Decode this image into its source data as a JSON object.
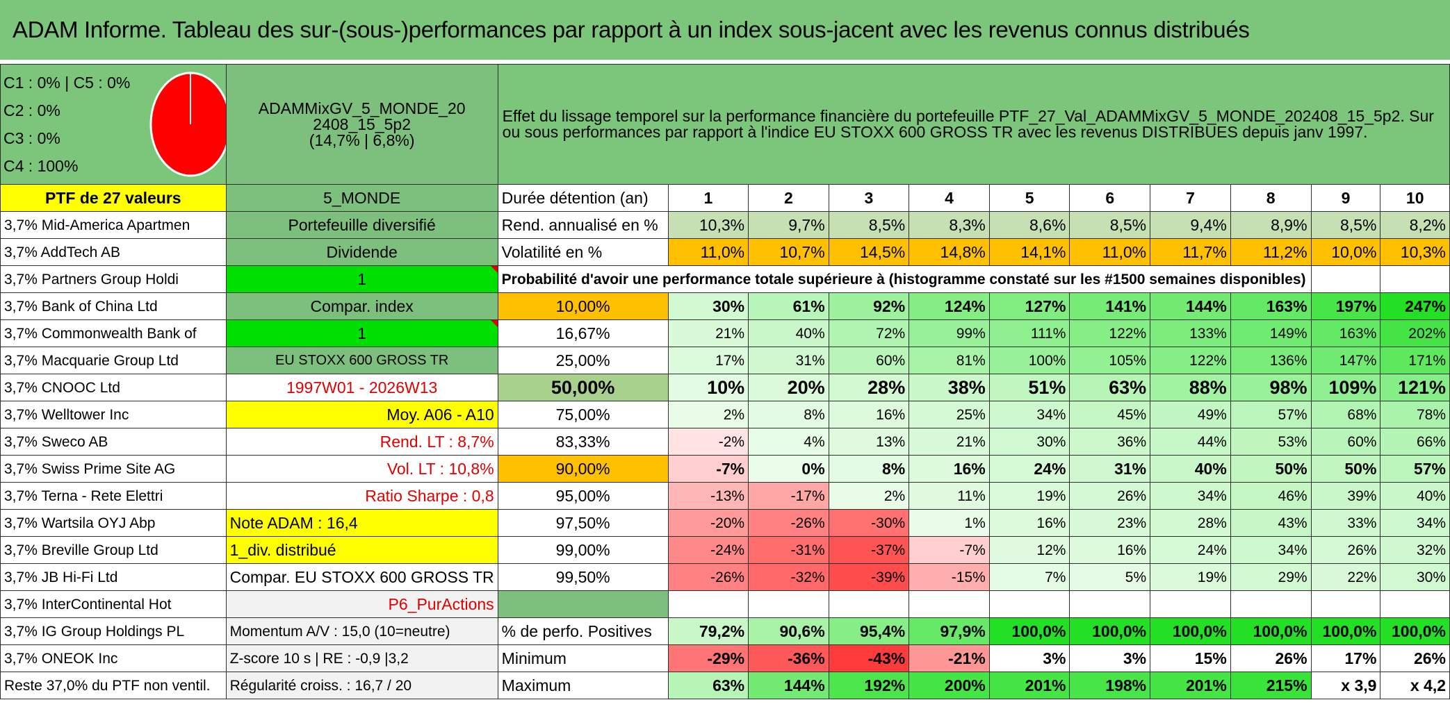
{
  "title": "ADAM Informe. Tableau des sur-(sous-)performances par rapport à un index sous-jacent avec les revenus connus distribués",
  "classes": [
    "C1 : 0% | C5 : 0%",
    "C2 : 0%",
    "C3 : 0%",
    "C4 : 100%"
  ],
  "pie_color": "#ff0000",
  "portfolio_name": "ADAMMixGV_5_MONDE_202408_15_5p2",
  "portfolio_name_line1": "ADAMMixGV_5_MONDE_20",
  "portfolio_name_line2": "2408_15_5p2",
  "portfolio_stats": "(14,7% | 6,8%)",
  "description": "Effet du lissage temporel sur la performance financière du portefeuille PTF_27_Val_ADAMMixGV_5_MONDE_202408_15_5p2. Sur ou sous performances par rapport à l'indice EU STOXX 600 GROSS TR avec les revenus DISTRIBUES depuis janv 1997.",
  "ptf_label": "PTF de 27 valeurs",
  "zone_label": "5_MONDE",
  "duration_label": "Durée détention (an)",
  "years": [
    "1",
    "2",
    "3",
    "4",
    "5",
    "6",
    "7",
    "8",
    "9",
    "10"
  ],
  "holdings": [
    "3,7% Mid-America Apartmen",
    "3,7% AddTech AB",
    "3,7% Partners Group Holdi",
    "3,7% Bank of China Ltd",
    "3,7% Commonwealth Bank of",
    "3,7% Macquarie Group Ltd",
    "3,7% CNOOC Ltd",
    "3,7% Welltower Inc",
    "3,7% Sweco AB",
    "3,7% Swiss Prime Site AG",
    "3,7% Terna - Rete Elettri",
    "3,7% Wartsila OYJ Abp",
    "3,7% Breville Group Ltd",
    "3,7% JB Hi-Fi Ltd",
    "3,7% InterContinental Hot",
    "3,7% IG Group Holdings PL",
    "3,7% ONEOK Inc",
    "Reste 37,0% du PTF non ventil."
  ],
  "info": [
    "Portefeuille diversifié",
    "Dividende",
    "1",
    "Compar. index",
    "1",
    "EU STOXX 600 GROSS TR",
    "1997W01 - 2026W13",
    "Moy. A06 - A10",
    "Rend. LT : 8,7%",
    "Vol. LT : 10,8%",
    "Ratio Sharpe : 0,8",
    "Note ADAM : 16,4",
    "1_div. distribué",
    "Compar. EU STOXX 600 GROSS TR",
    "P6_PurActions",
    "Momentum A/V : 15,0 (10=neutre)",
    "Z-score 10 s | RE : -0,9 |3,2",
    "Régularité croiss. : 16,7 / 20"
  ],
  "rend_label": "Rend. annualisé en %",
  "rend": [
    "10,3%",
    "9,7%",
    "8,5%",
    "8,3%",
    "8,6%",
    "8,5%",
    "9,4%",
    "8,9%",
    "8,5%",
    "8,2%"
  ],
  "vol_label": "Volatilité en %",
  "vol": [
    "11,0%",
    "10,7%",
    "14,5%",
    "14,8%",
    "14,1%",
    "11,0%",
    "11,7%",
    "11,2%",
    "10,0%",
    "10,3%"
  ],
  "prob_title": "Probabilité d'avoir une performance totale supérieure à (histogramme constaté sur les #1500 semaines disponibles)",
  "prob_rows": [
    {
      "label": "10,00%",
      "values": [
        "30%",
        "61%",
        "92%",
        "124%",
        "127%",
        "141%",
        "144%",
        "163%",
        "197%",
        "247%"
      ]
    },
    {
      "label": "16,67%",
      "values": [
        "21%",
        "40%",
        "72%",
        "99%",
        "111%",
        "122%",
        "133%",
        "149%",
        "163%",
        "202%"
      ]
    },
    {
      "label": "25,00%",
      "values": [
        "17%",
        "31%",
        "60%",
        "81%",
        "100%",
        "105%",
        "122%",
        "136%",
        "147%",
        "171%"
      ]
    },
    {
      "label": "50,00%",
      "values": [
        "10%",
        "20%",
        "28%",
        "38%",
        "51%",
        "63%",
        "88%",
        "98%",
        "109%",
        "121%"
      ]
    },
    {
      "label": "75,00%",
      "values": [
        "2%",
        "8%",
        "16%",
        "25%",
        "34%",
        "45%",
        "49%",
        "57%",
        "68%",
        "78%"
      ]
    },
    {
      "label": "83,33%",
      "values": [
        "-2%",
        "4%",
        "13%",
        "21%",
        "30%",
        "36%",
        "44%",
        "53%",
        "60%",
        "66%"
      ]
    },
    {
      "label": "90,00%",
      "values": [
        "-7%",
        "0%",
        "8%",
        "16%",
        "24%",
        "31%",
        "40%",
        "50%",
        "50%",
        "57%"
      ]
    },
    {
      "label": "95,00%",
      "values": [
        "-13%",
        "-17%",
        "2%",
        "11%",
        "19%",
        "26%",
        "34%",
        "46%",
        "39%",
        "40%"
      ]
    },
    {
      "label": "97,50%",
      "values": [
        "-20%",
        "-26%",
        "-30%",
        "1%",
        "16%",
        "23%",
        "28%",
        "43%",
        "33%",
        "34%"
      ]
    },
    {
      "label": "99,00%",
      "values": [
        "-24%",
        "-31%",
        "-37%",
        "-7%",
        "12%",
        "16%",
        "24%",
        "34%",
        "26%",
        "32%"
      ]
    },
    {
      "label": "99,50%",
      "values": [
        "-26%",
        "-32%",
        "-39%",
        "-15%",
        "7%",
        "5%",
        "19%",
        "29%",
        "22%",
        "30%"
      ]
    }
  ],
  "pos_label": "% de perfo. Positives",
  "pos": [
    "79,2%",
    "90,6%",
    "95,4%",
    "97,9%",
    "100,0%",
    "100,0%",
    "100,0%",
    "100,0%",
    "100,0%",
    "100,0%"
  ],
  "min_label": "Minimum",
  "min": [
    "-29%",
    "-36%",
    "-43%",
    "-21%",
    "3%",
    "3%",
    "15%",
    "26%",
    "17%",
    "26%"
  ],
  "max_label": "Maximum",
  "max": [
    "63%",
    "144%",
    "192%",
    "200%",
    "201%",
    "198%",
    "201%",
    "215%",
    "x 3,9",
    "x 4,2"
  ]
}
